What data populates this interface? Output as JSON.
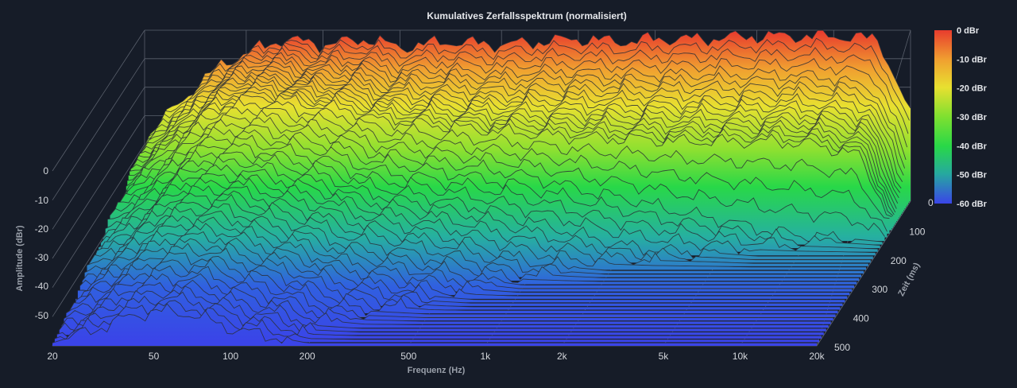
{
  "chart_data": {
    "type": "waterfall",
    "title": "Kumulatives Zerfallsspektrum (normalisiert)",
    "xlabel": "Frequenz (Hz)",
    "ylabel": "Amplitude (dBr)",
    "zlabel": "Zeit (ms)",
    "x_scale": "log",
    "xlim": [
      20,
      20000
    ],
    "ylim": [
      -60,
      0
    ],
    "zlim": [
      0,
      500
    ],
    "x_ticks": [
      "20",
      "50",
      "100",
      "200",
      "500",
      "1k",
      "2k",
      "5k",
      "10k",
      "20k"
    ],
    "x_tick_values": [
      20,
      50,
      100,
      200,
      500,
      1000,
      2000,
      5000,
      10000,
      20000
    ],
    "y_ticks": [
      "0",
      "-10",
      "-20",
      "-30",
      "-40",
      "-50"
    ],
    "y_tick_values": [
      0,
      -10,
      -20,
      -30,
      -40,
      -50
    ],
    "z_ticks": [
      "0",
      "100",
      "200",
      "300",
      "400",
      "500"
    ],
    "z_tick_values": [
      0,
      100,
      200,
      300,
      400,
      500
    ],
    "colorbar": {
      "labels": [
        "0 dBr",
        "-10 dBr",
        "-20 dBr",
        "-30 dBr",
        "-40 dBr",
        "-50 dBr",
        "-60 dBr"
      ],
      "values": [
        0,
        -10,
        -20,
        -30,
        -40,
        -50,
        -60
      ],
      "colors": [
        "#e83c2e",
        "#f0a030",
        "#e8e030",
        "#7ee030",
        "#28d848",
        "#26a8a0",
        "#3a44e8"
      ]
    },
    "grid": true,
    "time_slices_ms": [
      0,
      25,
      50,
      75,
      100,
      150,
      200,
      250,
      300,
      350,
      400,
      450,
      500
    ],
    "series_frequencies_hz": [
      20,
      30,
      40,
      50,
      70,
      100,
      150,
      200,
      300,
      500,
      700,
      1000,
      1500,
      2000,
      3000,
      5000,
      7000,
      10000,
      15000,
      20000
    ],
    "series": [
      {
        "time_ms": 0,
        "values": [
          -38,
          -22,
          -12,
          -8,
          -3,
          -5,
          -3,
          -6,
          -4,
          -5,
          -4,
          -3,
          -4,
          -3,
          -3,
          -2,
          -2,
          -2,
          -3,
          -30
        ]
      },
      {
        "time_ms": 25,
        "values": [
          -40,
          -24,
          -14,
          -10,
          -6,
          -9,
          -8,
          -12,
          -11,
          -13,
          -12,
          -12,
          -13,
          -13,
          -13,
          -13,
          -13,
          -14,
          -18,
          -42
        ]
      },
      {
        "time_ms": 50,
        "values": [
          -42,
          -26,
          -16,
          -12,
          -9,
          -12,
          -12,
          -16,
          -16,
          -18,
          -18,
          -18,
          -19,
          -19,
          -20,
          -20,
          -20,
          -21,
          -25,
          -50
        ]
      },
      {
        "time_ms": 75,
        "values": [
          -43,
          -28,
          -18,
          -14,
          -11,
          -14,
          -15,
          -19,
          -20,
          -22,
          -22,
          -23,
          -24,
          -24,
          -25,
          -25,
          -25,
          -26,
          -30,
          -54
        ]
      },
      {
        "time_ms": 100,
        "values": [
          -44,
          -30,
          -20,
          -16,
          -13,
          -16,
          -18,
          -22,
          -23,
          -25,
          -26,
          -27,
          -28,
          -28,
          -29,
          -29,
          -29,
          -30,
          -34,
          -57
        ]
      },
      {
        "time_ms": 150,
        "values": [
          -46,
          -33,
          -23,
          -19,
          -17,
          -20,
          -23,
          -28,
          -30,
          -33,
          -35,
          -38,
          -42,
          -44,
          -48,
          -52,
          -55,
          -57,
          -58,
          -59
        ]
      },
      {
        "time_ms": 200,
        "values": [
          -48,
          -36,
          -27,
          -23,
          -21,
          -25,
          -29,
          -34,
          -37,
          -41,
          -44,
          -48,
          -52,
          -55,
          -57,
          -58,
          -59,
          -59,
          -59,
          -59
        ]
      },
      {
        "time_ms": 250,
        "values": [
          -50,
          -39,
          -30,
          -27,
          -26,
          -30,
          -34,
          -39,
          -43,
          -48,
          -52,
          -56,
          -58,
          -59,
          -59,
          -59,
          -59,
          -59,
          -59,
          -59
        ]
      },
      {
        "time_ms": 300,
        "values": [
          -52,
          -42,
          -34,
          -31,
          -30,
          -35,
          -40,
          -45,
          -49,
          -54,
          -57,
          -59,
          -59,
          -59,
          -59,
          -59,
          -59,
          -59,
          -59,
          -59
        ]
      },
      {
        "time_ms": 350,
        "values": [
          -54,
          -45,
          -38,
          -35,
          -35,
          -40,
          -45,
          -50,
          -54,
          -58,
          -59,
          -59,
          -59,
          -59,
          -59,
          -59,
          -59,
          -59,
          -59,
          -59
        ]
      },
      {
        "time_ms": 400,
        "values": [
          -56,
          -48,
          -42,
          -39,
          -40,
          -45,
          -50,
          -55,
          -58,
          -59,
          -59,
          -59,
          -59,
          -59,
          -59,
          -59,
          -59,
          -59,
          -59,
          -59
        ]
      },
      {
        "time_ms": 450,
        "values": [
          -58,
          -51,
          -46,
          -44,
          -45,
          -50,
          -54,
          -58,
          -59,
          -59,
          -59,
          -59,
          -59,
          -59,
          -59,
          -59,
          -59,
          -59,
          -59,
          -59
        ]
      },
      {
        "time_ms": 500,
        "values": [
          -59,
          -54,
          -50,
          -48,
          -49,
          -54,
          -57,
          -59,
          -59,
          -59,
          -59,
          -59,
          -59,
          -59,
          -59,
          -59,
          -59,
          -59,
          -59,
          -59
        ]
      }
    ]
  }
}
